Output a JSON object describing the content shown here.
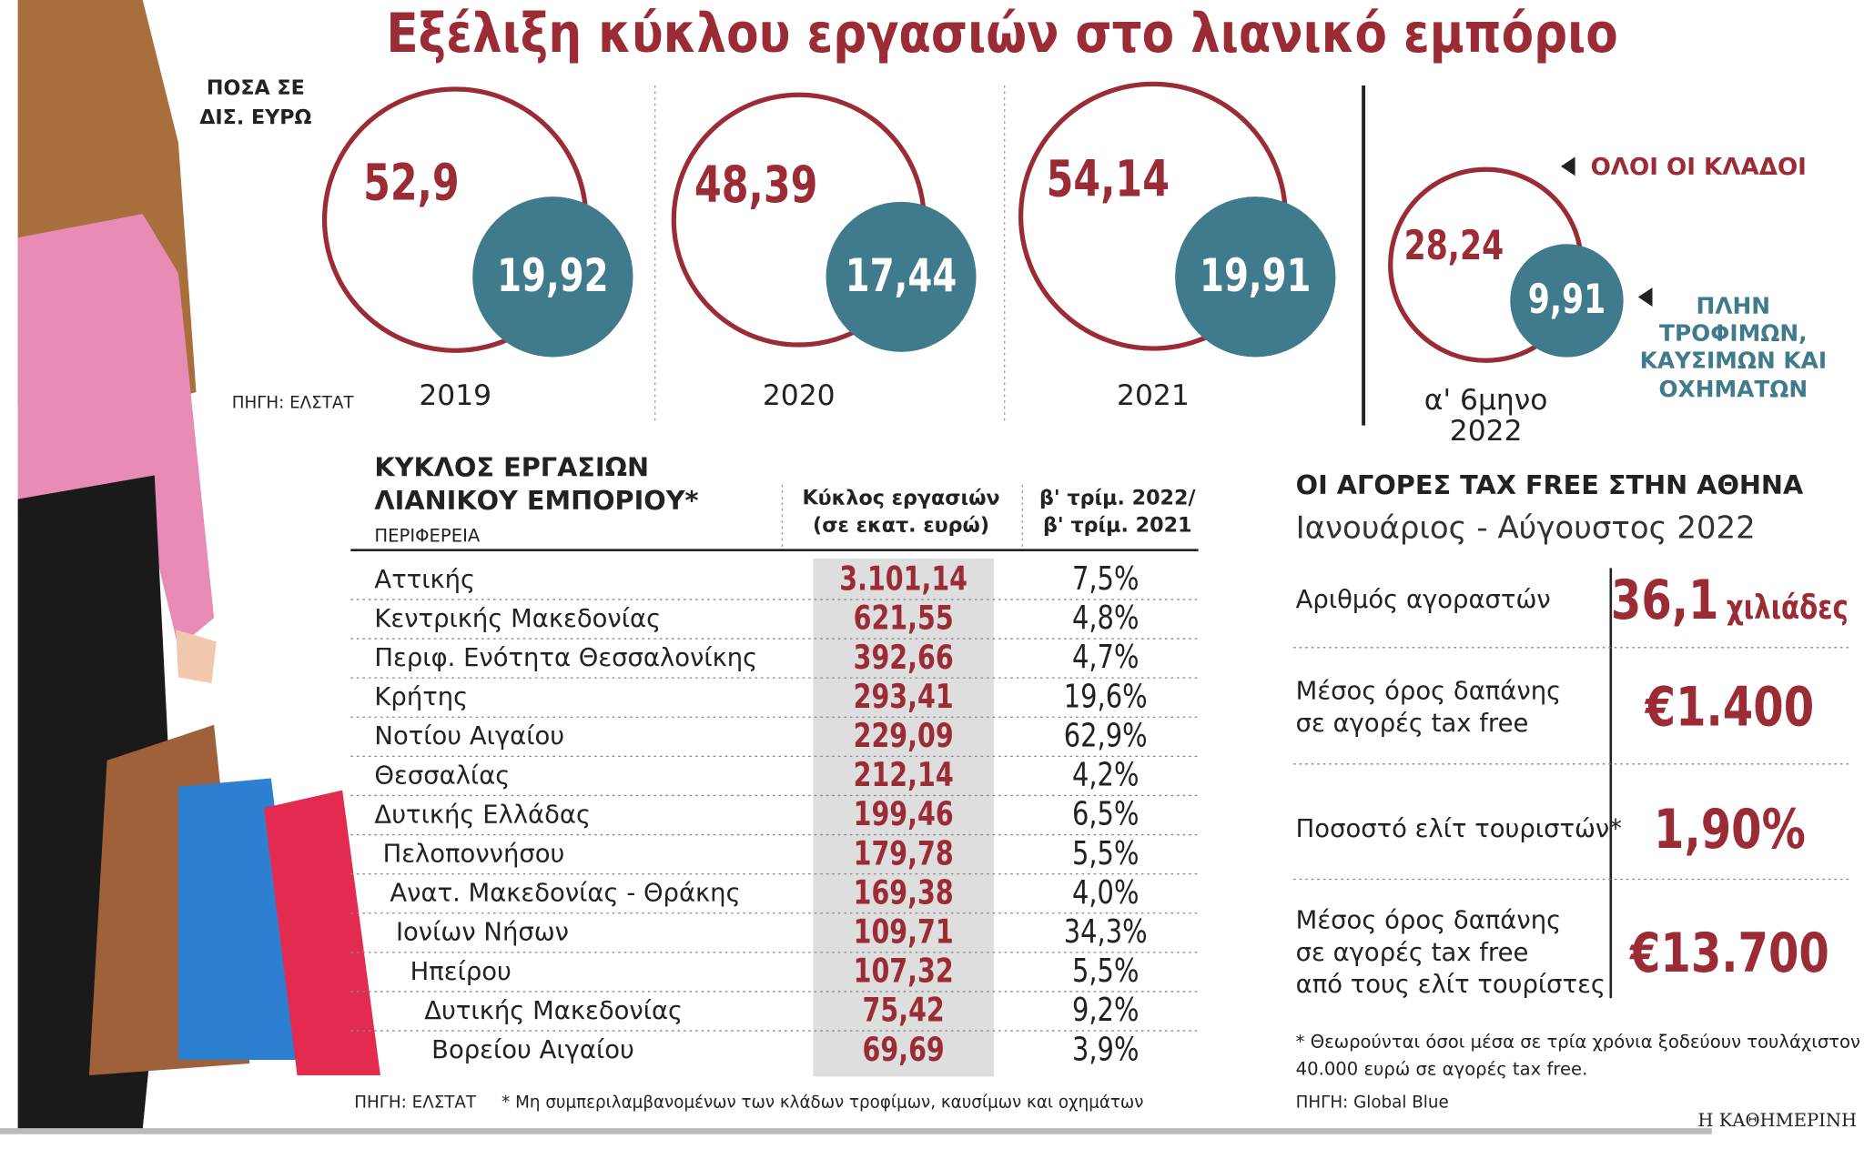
{
  "chart_data": {
    "type": "bubble",
    "title": "Εξέλιξη κύκλου εργασιών στο λιανικό εμπόριο",
    "units": [
      "ΠΟΣΑ ΣΕ",
      "ΔΙΣ. ΕΥΡΩ"
    ],
    "source": "ΠΗΓΗ: ΕΛΣΤΑΤ",
    "categories": [
      "2019",
      "2020",
      "2021",
      "α' 6μηνο 2022"
    ],
    "series": [
      {
        "name": "ΟΛΟΙ ΟΙ ΚΛΑΔΟΙ",
        "color": "#9b2b34",
        "values": [
          52.9,
          48.39,
          54.14,
          28.24
        ],
        "value_labels": [
          "52,9",
          "48,39",
          "54,14",
          "28,24"
        ]
      },
      {
        "name": "ΠΛΗΝ ΤΡΟΦΙΜΩΝ, ΚΑΥΣΙΜΩΝ ΚΑΙ ΟΧΗΜΑΤΩΝ",
        "color": "#3f7b8c",
        "values": [
          19.92,
          17.44,
          19.91,
          9.91
        ],
        "value_labels": [
          "19,92",
          "17,44",
          "19,91",
          "9,91"
        ]
      }
    ]
  },
  "table": {
    "title": [
      "ΚΥΚΛΟΣ ΕΡΓΑΣΙΩΝ",
      "ΛΙΑΝΙΚΟΥ ΕΜΠΟΡΙΟΥ*"
    ],
    "subtitle": "ΠΕΡΙΦΕΡΕΙΑ",
    "columns": [
      [
        "Κύκλος εργασιών",
        "(σε εκατ. ευρώ)"
      ],
      [
        "β' τρίμ. 2022/",
        "β' τρίμ. 2021"
      ]
    ],
    "rows": [
      [
        "Αττικής",
        "3.101,14",
        "7,5%"
      ],
      [
        "Κεντρικής Μακεδονίας",
        "621,55",
        "4,8%"
      ],
      [
        "Περιφ. Ενότητα Θεσσαλονίκης",
        "392,66",
        "4,7%"
      ],
      [
        "Κρήτης",
        "293,41",
        "19,6%"
      ],
      [
        "Νοτίου Αιγαίου",
        "229,09",
        "62,9%"
      ],
      [
        "Θεσσαλίας",
        "212,14",
        "4,2%"
      ],
      [
        "Δυτικής Ελλάδας",
        "199,46",
        "6,5%"
      ],
      [
        "Πελοποννήσου",
        "179,78",
        "5,5%"
      ],
      [
        "Ανατ. Μακεδονίας - Θράκης",
        "169,38",
        "4,0%"
      ],
      [
        "Ιονίων Νήσων",
        "109,71",
        "34,3%"
      ],
      [
        "Ηπείρου",
        "107,32",
        "5,5%"
      ],
      [
        "Δυτικής Μακεδονίας",
        "75,42",
        "9,2%"
      ],
      [
        "Βορείου Αιγαίου",
        "69,69",
        "3,9%"
      ]
    ],
    "source": "ΠΗΓΗ: ΕΛΣΤΑΤ",
    "note": "* Μη συμπεριλαμβανομένων των κλάδων τροφίμων, καυσίμων και οχημάτων"
  },
  "tax_free": {
    "title": "ΟΙ ΑΓΟΡΕΣ TAX FREE ΣΤΗΝ ΑΘΗΝΑ",
    "subtitle": "Ιανουάριος - Αύγουστος 2022",
    "rows": [
      {
        "label": [
          "Αριθμός αγοραστών"
        ],
        "value": "36,1",
        "unit": "χιλιάδες"
      },
      {
        "label": [
          "Μέσος όρος δαπάνης",
          "σε αγορές tax free"
        ],
        "value": "€1.400"
      },
      {
        "label": [
          "Ποσοστό ελίτ τουριστών*"
        ],
        "value": "1,90%"
      },
      {
        "label": [
          "Μέσος όρος δαπάνης",
          "σε αγορές tax free",
          "από τους ελίτ τουρίστες"
        ],
        "value": "€13.700"
      }
    ],
    "note": [
      "* Θεωρούνται όσοι μέσα σε τρία χρόνια ξοδεύουν τουλάχιστον",
      "40.000 ευρώ σε αγορές tax free."
    ],
    "source": "ΠΗΓΗ: Global Blue"
  },
  "footer": "Η ΚΑΘΗΜΕΡΙΝΗ"
}
